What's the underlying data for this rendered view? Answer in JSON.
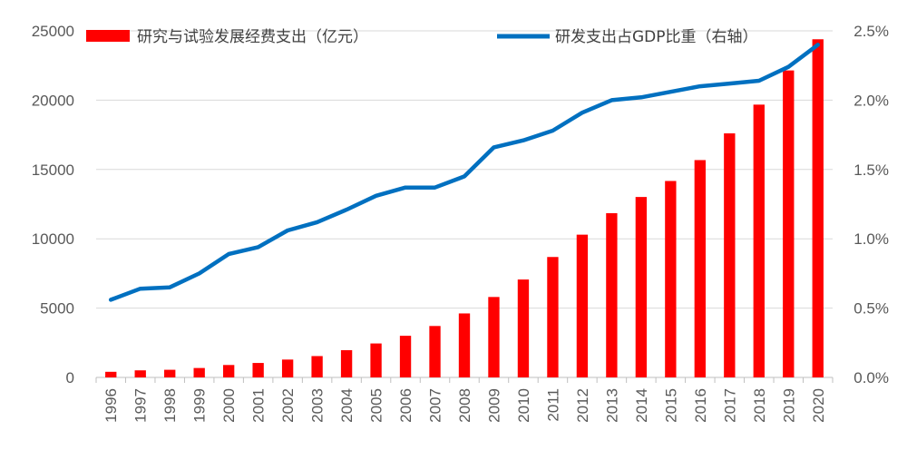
{
  "chart_data": {
    "type": "bar",
    "categories": [
      "1996",
      "1997",
      "1998",
      "1999",
      "2000",
      "2001",
      "2002",
      "2003",
      "2004",
      "2005",
      "2006",
      "2007",
      "2008",
      "2009",
      "2010",
      "2011",
      "2012",
      "2013",
      "2014",
      "2015",
      "2016",
      "2017",
      "2018",
      "2019",
      "2020"
    ],
    "series": [
      {
        "name": "研究与试验发展经费支出（亿元）",
        "type": "bar",
        "axis": "left",
        "color": "#ff0000",
        "values": [
          405,
          510,
          551,
          679,
          896,
          1043,
          1288,
          1540,
          1966,
          2450,
          3003,
          3710,
          4616,
          5802,
          7063,
          8687,
          10298,
          11847,
          13016,
          14170,
          15677,
          17606,
          19678,
          22144,
          24393
        ]
      },
      {
        "name": "研发支出占GDP比重（右轴）",
        "type": "line",
        "axis": "right",
        "color": "#0070c0",
        "values": [
          0.56,
          0.64,
          0.65,
          0.75,
          0.89,
          0.94,
          1.06,
          1.12,
          1.21,
          1.31,
          1.37,
          1.37,
          1.45,
          1.66,
          1.71,
          1.78,
          1.91,
          2.0,
          2.02,
          2.06,
          2.1,
          2.12,
          2.14,
          2.24,
          2.4
        ]
      }
    ],
    "y_left": {
      "ylim": [
        0,
        25000
      ],
      "ticks": [
        "0",
        "5000",
        "10000",
        "15000",
        "20000",
        "25000"
      ]
    },
    "y_right": {
      "ylim": [
        0,
        2.5
      ],
      "ticks": [
        "0.0%",
        "0.5%",
        "1.0%",
        "1.5%",
        "2.0%",
        "2.5%"
      ]
    },
    "grid": true,
    "legend_position": "top"
  }
}
